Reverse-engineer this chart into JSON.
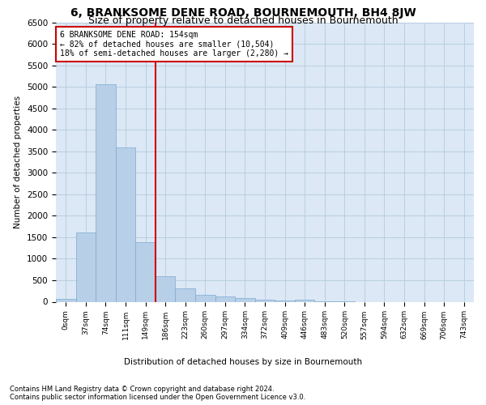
{
  "title": "6, BRANKSOME DENE ROAD, BOURNEMOUTH, BH4 8JW",
  "subtitle": "Size of property relative to detached houses in Bournemouth",
  "xlabel": "Distribution of detached houses by size in Bournemouth",
  "ylabel": "Number of detached properties",
  "footnote1": "Contains HM Land Registry data © Crown copyright and database right 2024.",
  "footnote2": "Contains public sector information licensed under the Open Government Licence v3.0.",
  "annotation_title": "6 BRANKSOME DENE ROAD: 154sqm",
  "annotation_line1": "← 82% of detached houses are smaller (10,504)",
  "annotation_line2": "18% of semi-detached houses are larger (2,280) →",
  "bar_labels": [
    "0sqm",
    "37sqm",
    "74sqm",
    "111sqm",
    "149sqm",
    "186sqm",
    "223sqm",
    "260sqm",
    "297sqm",
    "334sqm",
    "372sqm",
    "409sqm",
    "446sqm",
    "483sqm",
    "520sqm",
    "557sqm",
    "594sqm",
    "632sqm",
    "669sqm",
    "706sqm",
    "743sqm"
  ],
  "bar_heights": [
    75,
    1620,
    5060,
    3580,
    1380,
    590,
    305,
    155,
    120,
    85,
    45,
    25,
    55,
    5,
    5,
    0,
    0,
    0,
    0,
    0,
    0
  ],
  "bar_color": "#b8cfe8",
  "bar_edge_color": "#7aaad0",
  "vertical_line_color": "#cc0000",
  "ylim": [
    0,
    6500
  ],
  "yticks": [
    0,
    500,
    1000,
    1500,
    2000,
    2500,
    3000,
    3500,
    4000,
    4500,
    5000,
    5500,
    6000,
    6500
  ],
  "bg_color": "#ffffff",
  "plot_bg_color": "#dce8f5",
  "grid_color": "#b8cfe0",
  "title_fontsize": 10,
  "subtitle_fontsize": 9
}
